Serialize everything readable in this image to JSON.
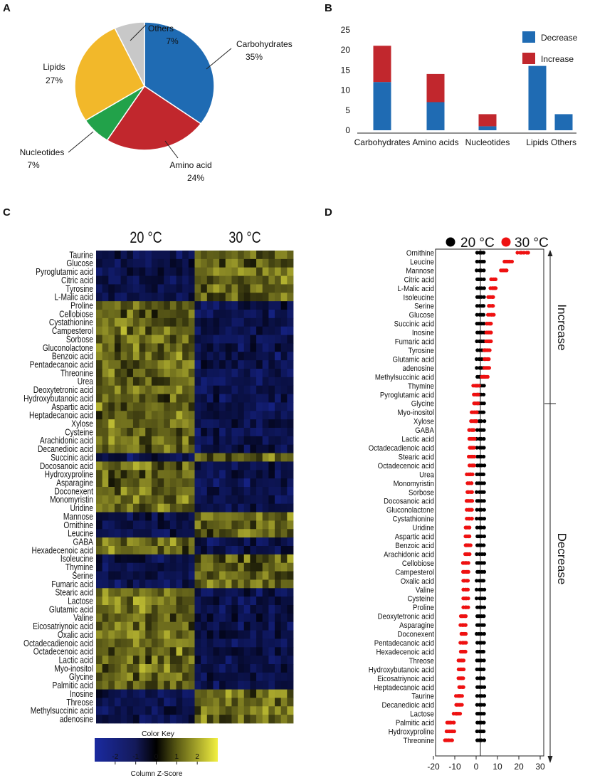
{
  "panels": {
    "a": "A",
    "b": "B",
    "c": "C",
    "d": "D"
  },
  "colors": {
    "carbohydrates": "#1f6bb3",
    "amino_acid": "#c1272d",
    "nucleotides": "#22a24a",
    "lipids": "#f2b82a",
    "others": "#c8c8c8",
    "decrease": "#1f6bb3",
    "increase": "#c1272d",
    "hm_low": "#1a2aa0",
    "hm_mid": "#000000",
    "hm_high": "#f2f040",
    "dot20": "#000000",
    "dot30": "#ee1111"
  },
  "chart_data": [
    {
      "type": "pie",
      "slices": [
        {
          "label": "Carbohydrates",
          "pct_label": "35%",
          "value": 35,
          "color": "#1f6bb3"
        },
        {
          "label": "Amino acid",
          "pct_label": "24%",
          "value": 24,
          "color": "#c1272d"
        },
        {
          "label": "Nucleotides",
          "pct_label": "7%",
          "value": 7,
          "color": "#22a24a"
        },
        {
          "label": "Lipids",
          "pct_label": "27%",
          "value": 27,
          "color": "#f2b82a"
        },
        {
          "label": "Others",
          "pct_label": "7%",
          "value": 7,
          "color": "#c8c8c8"
        }
      ]
    },
    {
      "type": "bar",
      "stacked": true,
      "categories": [
        "Carbohydrates",
        "Amino acids",
        "Nucleotides",
        "Lipids",
        "Others"
      ],
      "series": [
        {
          "name": "Decrease",
          "values": [
            12,
            7,
            1,
            16,
            4
          ],
          "color": "#1f6bb3"
        },
        {
          "name": "Increase",
          "values": [
            9,
            7,
            3,
            0,
            0
          ],
          "color": "#c1272d"
        }
      ],
      "ylim": [
        0,
        25
      ],
      "yticks": [
        "0",
        "5",
        "10",
        "15",
        "20",
        "25"
      ],
      "legend": "top-right"
    },
    {
      "type": "heatmap",
      "columns_groups": [
        "20 °C",
        "30 °C"
      ],
      "rows": [
        "Taurine",
        "Glucose",
        "Pyroglutamic acid",
        "Citric acid",
        "Tyrosine",
        "L-Malic acid",
        "Proline",
        "Cellobiose",
        "Cystathionine",
        "Campesterol",
        "Sorbose",
        "Gluconolactone",
        "Benzoic acid",
        "Pentadecanoic acid",
        "Threonine",
        "Urea",
        "Deoxytetronic acid",
        "Hydroxybutanoic acid",
        "Aspartic acid",
        "Heptadecanoic acid",
        "Xylose",
        "Cysteine",
        "Arachidonic acid",
        "Decanedioic acid",
        "Succinic acid",
        "Docosanoic acid",
        "Hydroxyproline",
        "Asparagine",
        "Doconexent",
        "Monomyristin",
        "Uridine",
        "Mannose",
        "Ornithine",
        "Leucine",
        "GABA",
        "Hexadecenoic acid",
        "Isoleucine",
        "Thymine",
        "Serine",
        "Fumaric acid",
        "Stearic acid",
        "Lactose",
        "Glutamic acid",
        "Valine",
        "Eicosatriynoic acid",
        "Oxalic acid",
        "Octadecadienoic acid",
        "Octadecenoic acid",
        "Lactic acid",
        "Myo-inositol",
        "Glycine",
        "Palmitic acid",
        "Inosine",
        "Threose",
        "Methylsuccinic acid",
        "adenosine"
      ],
      "row_pattern": [
        -1,
        -1,
        -1,
        -1,
        -1,
        -1,
        1,
        1,
        1,
        1,
        1,
        1,
        1,
        1,
        1,
        1,
        1,
        1,
        1,
        1,
        1,
        1,
        1,
        1,
        -1,
        1,
        1,
        1,
        1,
        1,
        1,
        -1,
        -1,
        -1,
        1,
        1,
        -1,
        -1,
        -1,
        -1,
        1,
        1,
        1,
        1,
        1,
        1,
        1,
        1,
        1,
        1,
        1,
        1,
        -1,
        -1,
        -1,
        -1
      ],
      "color_key": {
        "title": "Color Key",
        "xlabel": "Column Z-Score",
        "ticks": [
          "-2",
          "-1",
          "0",
          "1",
          "2"
        ],
        "range": [
          -3,
          3
        ]
      }
    },
    {
      "type": "scatter",
      "legend": [
        "20 °C",
        "30 °C"
      ],
      "metabolites": [
        "Ornithine",
        "Leucine",
        "Mannose",
        "Citric acid",
        "L-Malic acid",
        "Isoleucine",
        "Serine",
        "Glucose",
        "Succinic acid",
        "Inosine",
        "Fumaric acid",
        "Tyrosine",
        "Glutamic acid",
        "adenosine",
        "Methylsuccinic acid",
        "Thymine",
        "Pyroglutamic acid",
        "Glycine",
        "Myo-inositol",
        "Xylose",
        "GABA",
        "Lactic acid",
        "Octadecadienoic acid",
        "Stearic acid",
        "Octadecenoic acid",
        "Urea",
        "Monomyristin",
        "Sorbose",
        "Docosanoic acid",
        "Gluconolactone",
        "Cystathionine",
        "Uridine",
        "Aspartic acid",
        "Benzoic acid",
        "Arachidonic acid",
        "Cellobiose",
        "Campesterol",
        "Oxalic acid",
        "Valine",
        "Cysteine",
        "Proline",
        "Deoxytetronic acid",
        "Asparagine",
        "Doconexent",
        "Pentadecanoic acid",
        "Hexadecenoic acid",
        "Threose",
        "Hydroxybutanoic acid",
        "Eicosatriynoic acid",
        "Heptadecanoic acid",
        "Taurine",
        "Decanedioic acid",
        "Lactose",
        "Palmitic acid",
        "Hydroxyproline",
        "Threonine"
      ],
      "centers_30C": [
        20,
        13,
        11,
        6,
        6,
        5,
        5,
        5,
        4,
        4,
        4,
        3,
        3,
        3,
        2,
        -2,
        -2,
        -2,
        -3,
        -3,
        -4,
        -4,
        -4,
        -4,
        -4,
        -5,
        -5,
        -5,
        -5,
        -5,
        -5,
        -6,
        -6,
        -6,
        -6,
        -7,
        -7,
        -7,
        -7,
        -7,
        -7,
        -8,
        -8,
        -8,
        -8,
        -8,
        -9,
        -9,
        -9,
        -9,
        -10,
        -10,
        -11,
        -14,
        -14,
        -15
      ],
      "x_ticks": [
        "-20",
        "-10",
        "0",
        "10",
        "20",
        "30"
      ],
      "xlim": [
        -22,
        32
      ],
      "side_labels": {
        "increase": "Increase",
        "decrease": "Decrease"
      }
    }
  ]
}
